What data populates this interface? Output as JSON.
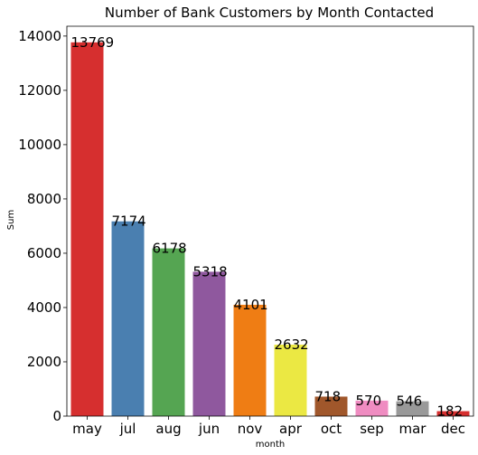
{
  "chart_data": {
    "type": "bar",
    "title": "Number of Bank Customers by Month Contacted",
    "xlabel": "month",
    "ylabel": "Sum",
    "categories": [
      "may",
      "jul",
      "aug",
      "jun",
      "nov",
      "apr",
      "oct",
      "sep",
      "mar",
      "dec"
    ],
    "values": [
      13769,
      7174,
      6178,
      5318,
      4101,
      2632,
      718,
      570,
      546,
      182
    ],
    "colors": [
      "#d62f2f",
      "#4a7fb0",
      "#55a552",
      "#8f589e",
      "#ef7d14",
      "#ebe843",
      "#a0572b",
      "#ef8cc1",
      "#999999",
      "#d62f2f"
    ],
    "ylim": [
      0,
      14000
    ],
    "yticks": [
      0,
      2000,
      4000,
      6000,
      8000,
      10000,
      12000,
      14000
    ],
    "grid": false,
    "legend": "none"
  }
}
